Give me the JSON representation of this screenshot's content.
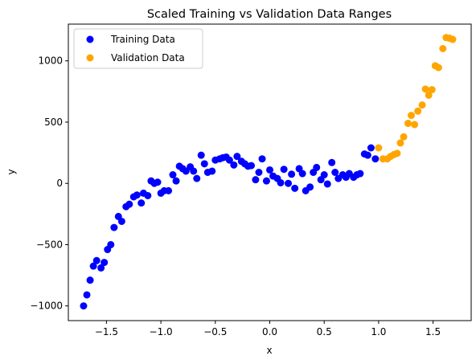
{
  "chart_data": {
    "type": "scatter",
    "title": "Scaled Training vs Validation Data Ranges",
    "xlabel": "x",
    "ylabel": "y",
    "xlim": [
      -1.85,
      1.85
    ],
    "ylim": [
      -1120,
      1300
    ],
    "xticks": [
      -1.5,
      -1.0,
      -0.5,
      0.0,
      0.5,
      1.0,
      1.5
    ],
    "xtick_labels": [
      "−1.5",
      "−1.0",
      "−0.5",
      "0.0",
      "0.5",
      "1.0",
      "1.5"
    ],
    "yticks": [
      -1000,
      -500,
      0,
      500,
      1000
    ],
    "ytick_labels": [
      "−1000",
      "−500",
      "0",
      "500",
      "1000"
    ],
    "grid": false,
    "legend": {
      "position": "top-left"
    },
    "series": [
      {
        "name": "Training Data",
        "color": "#0000ff",
        "points": [
          [
            -1.71,
            -1000
          ],
          [
            -1.68,
            -910
          ],
          [
            -1.65,
            -790
          ],
          [
            -1.62,
            -675
          ],
          [
            -1.59,
            -630
          ],
          [
            -1.55,
            -690
          ],
          [
            -1.52,
            -645
          ],
          [
            -1.49,
            -540
          ],
          [
            -1.46,
            -500
          ],
          [
            -1.43,
            -360
          ],
          [
            -1.39,
            -270
          ],
          [
            -1.36,
            -310
          ],
          [
            -1.32,
            -190
          ],
          [
            -1.29,
            -170
          ],
          [
            -1.25,
            -110
          ],
          [
            -1.22,
            -95
          ],
          [
            -1.18,
            -160
          ],
          [
            -1.16,
            -80
          ],
          [
            -1.12,
            -100
          ],
          [
            -1.09,
            20
          ],
          [
            -1.06,
            0
          ],
          [
            -1.03,
            10
          ],
          [
            -1.0,
            -80
          ],
          [
            -0.97,
            -60
          ],
          [
            -0.93,
            -60
          ],
          [
            -0.89,
            70
          ],
          [
            -0.86,
            20
          ],
          [
            -0.83,
            140
          ],
          [
            -0.8,
            120
          ],
          [
            -0.77,
            100
          ],
          [
            -0.73,
            135
          ],
          [
            -0.7,
            100
          ],
          [
            -0.67,
            40
          ],
          [
            -0.63,
            230
          ],
          [
            -0.6,
            160
          ],
          [
            -0.57,
            90
          ],
          [
            -0.53,
            100
          ],
          [
            -0.5,
            190
          ],
          [
            -0.46,
            200
          ],
          [
            -0.43,
            210
          ],
          [
            -0.4,
            215
          ],
          [
            -0.37,
            190
          ],
          [
            -0.33,
            150
          ],
          [
            -0.3,
            220
          ],
          [
            -0.26,
            180
          ],
          [
            -0.23,
            160
          ],
          [
            -0.2,
            140
          ],
          [
            -0.17,
            145
          ],
          [
            -0.13,
            30
          ],
          [
            -0.1,
            90
          ],
          [
            -0.07,
            200
          ],
          [
            -0.03,
            20
          ],
          [
            0.0,
            110
          ],
          [
            0.03,
            60
          ],
          [
            0.07,
            40
          ],
          [
            0.1,
            5
          ],
          [
            0.13,
            115
          ],
          [
            0.17,
            0
          ],
          [
            0.2,
            75
          ],
          [
            0.23,
            -40
          ],
          [
            0.27,
            120
          ],
          [
            0.3,
            80
          ],
          [
            0.33,
            -60
          ],
          [
            0.37,
            -30
          ],
          [
            0.4,
            90
          ],
          [
            0.43,
            130
          ],
          [
            0.47,
            30
          ],
          [
            0.5,
            70
          ],
          [
            0.53,
            -5
          ],
          [
            0.57,
            170
          ],
          [
            0.6,
            90
          ],
          [
            0.63,
            40
          ],
          [
            0.67,
            70
          ],
          [
            0.7,
            50
          ],
          [
            0.73,
            80
          ],
          [
            0.77,
            50
          ],
          [
            0.8,
            70
          ],
          [
            0.83,
            80
          ],
          [
            0.87,
            240
          ],
          [
            0.9,
            230
          ],
          [
            0.93,
            290
          ],
          [
            0.97,
            200
          ]
        ]
      },
      {
        "name": "Validation Data",
        "color": "#ffa500",
        "points": [
          [
            1.0,
            290
          ],
          [
            1.04,
            200
          ],
          [
            1.08,
            200
          ],
          [
            1.11,
            220
          ],
          [
            1.14,
            235
          ],
          [
            1.17,
            245
          ],
          [
            1.2,
            330
          ],
          [
            1.23,
            380
          ],
          [
            1.27,
            490
          ],
          [
            1.3,
            555
          ],
          [
            1.33,
            480
          ],
          [
            1.36,
            590
          ],
          [
            1.4,
            640
          ],
          [
            1.43,
            770
          ],
          [
            1.46,
            720
          ],
          [
            1.49,
            765
          ],
          [
            1.52,
            960
          ],
          [
            1.55,
            945
          ],
          [
            1.59,
            1100
          ],
          [
            1.62,
            1190
          ],
          [
            1.65,
            1185
          ],
          [
            1.68,
            1175
          ]
        ]
      }
    ]
  }
}
